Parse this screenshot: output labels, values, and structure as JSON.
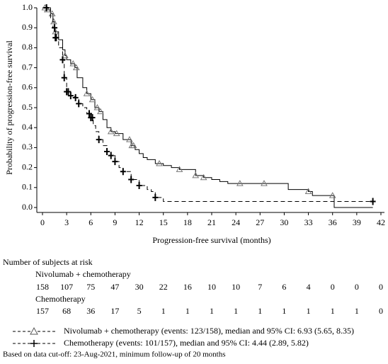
{
  "chart_data": {
    "type": "line",
    "step": true,
    "xlabel": "Progression-free survival (months)",
    "ylabel": "Probability of progression-free survival",
    "xlim": [
      0,
      42
    ],
    "ylim": [
      0,
      1
    ],
    "xticks": [
      0,
      3,
      6,
      9,
      12,
      15,
      18,
      21,
      24,
      27,
      30,
      33,
      36,
      39,
      42
    ],
    "yticks": [
      {
        "value": 0,
        "label": "0.0"
      },
      0.1,
      0.2,
      0.3,
      0.4,
      0.5,
      0.6,
      0.7,
      0.8,
      0.9,
      {
        "value": 1,
        "label": "1.0"
      }
    ],
    "series": [
      {
        "name": "Nivolumab + chemotherapy",
        "legend_label": "Nivolumab + chemotherapy (events: 123/158), median and 95% CI: 6.93 (5.65, 8.35)",
        "color": "#000000",
        "dashed": false,
        "marker": "triangle",
        "x": [
          0,
          0.5,
          1,
          1.3,
          1.5,
          2,
          2.5,
          2.8,
          3,
          3.5,
          4,
          4.3,
          5,
          5.5,
          6,
          6.5,
          7,
          7.5,
          8,
          8.5,
          9,
          10,
          11,
          11.5,
          12,
          12.5,
          13,
          14,
          15,
          16,
          17,
          19,
          20,
          21,
          22,
          23,
          30,
          30.5,
          33,
          33.5,
          36,
          36.2,
          41
        ],
        "values": [
          1,
          0.99,
          0.97,
          0.93,
          0.88,
          0.84,
          0.79,
          0.76,
          0.74,
          0.72,
          0.7,
          0.65,
          0.6,
          0.57,
          0.54,
          0.5,
          0.48,
          0.44,
          0.4,
          0.38,
          0.37,
          0.34,
          0.31,
          0.29,
          0.27,
          0.25,
          0.24,
          0.22,
          0.21,
          0.2,
          0.19,
          0.16,
          0.15,
          0.14,
          0.13,
          0.12,
          0.12,
          0.09,
          0.08,
          0.06,
          0.06,
          0,
          0
        ],
        "censored": [
          0.3,
          0.6,
          1.2,
          1.4,
          1.6,
          2.8,
          3.8,
          4.2,
          5.5,
          6.2,
          6.8,
          7.2,
          8.5,
          9.2,
          10.8,
          11.1,
          11.3,
          14.5,
          17,
          19,
          20,
          24.5,
          27.5,
          33,
          36
        ]
      },
      {
        "name": "Chemotherapy",
        "legend_label": "Chemotherapy (events: 101/157), median and 95% CI: 4.44 (2.89, 5.82)",
        "color": "#000000",
        "dashed": true,
        "marker": "plus",
        "x": [
          0,
          1,
          1.3,
          1.6,
          2,
          2.5,
          2.7,
          3,
          3.5,
          4,
          4.5,
          5,
          5.5,
          6,
          6.3,
          6.6,
          7,
          7.5,
          8,
          8.5,
          9,
          9.5,
          10,
          11,
          12,
          13,
          13.5,
          14,
          15,
          41
        ],
        "values": [
          1,
          0.95,
          0.9,
          0.85,
          0.8,
          0.74,
          0.65,
          0.58,
          0.56,
          0.55,
          0.52,
          0.5,
          0.47,
          0.45,
          0.41,
          0.38,
          0.34,
          0.31,
          0.28,
          0.26,
          0.23,
          0.2,
          0.18,
          0.14,
          0.11,
          0.09,
          0.08,
          0.05,
          0.03,
          0.03
        ],
        "censored": [
          0.5,
          1.5,
          1.6,
          1.7,
          2.5,
          2.7,
          3,
          3.2,
          3.5,
          4.1,
          4.5,
          5.8,
          6,
          6.2,
          7,
          8,
          8.5,
          9,
          10,
          11,
          12,
          14,
          41
        ]
      }
    ],
    "at_risk": {
      "title": "Number of subjects at risk",
      "rows": [
        [
          158,
          107,
          75,
          47,
          30,
          22,
          16,
          10,
          10,
          7,
          6,
          4,
          0,
          0,
          0
        ],
        [
          157,
          68,
          36,
          17,
          5,
          1,
          1,
          1,
          1,
          1,
          1,
          1,
          1,
          1,
          0
        ]
      ]
    },
    "footnote": "Based on data cut-off: 23-Aug-2021, minimum follow-up of 20 months"
  }
}
